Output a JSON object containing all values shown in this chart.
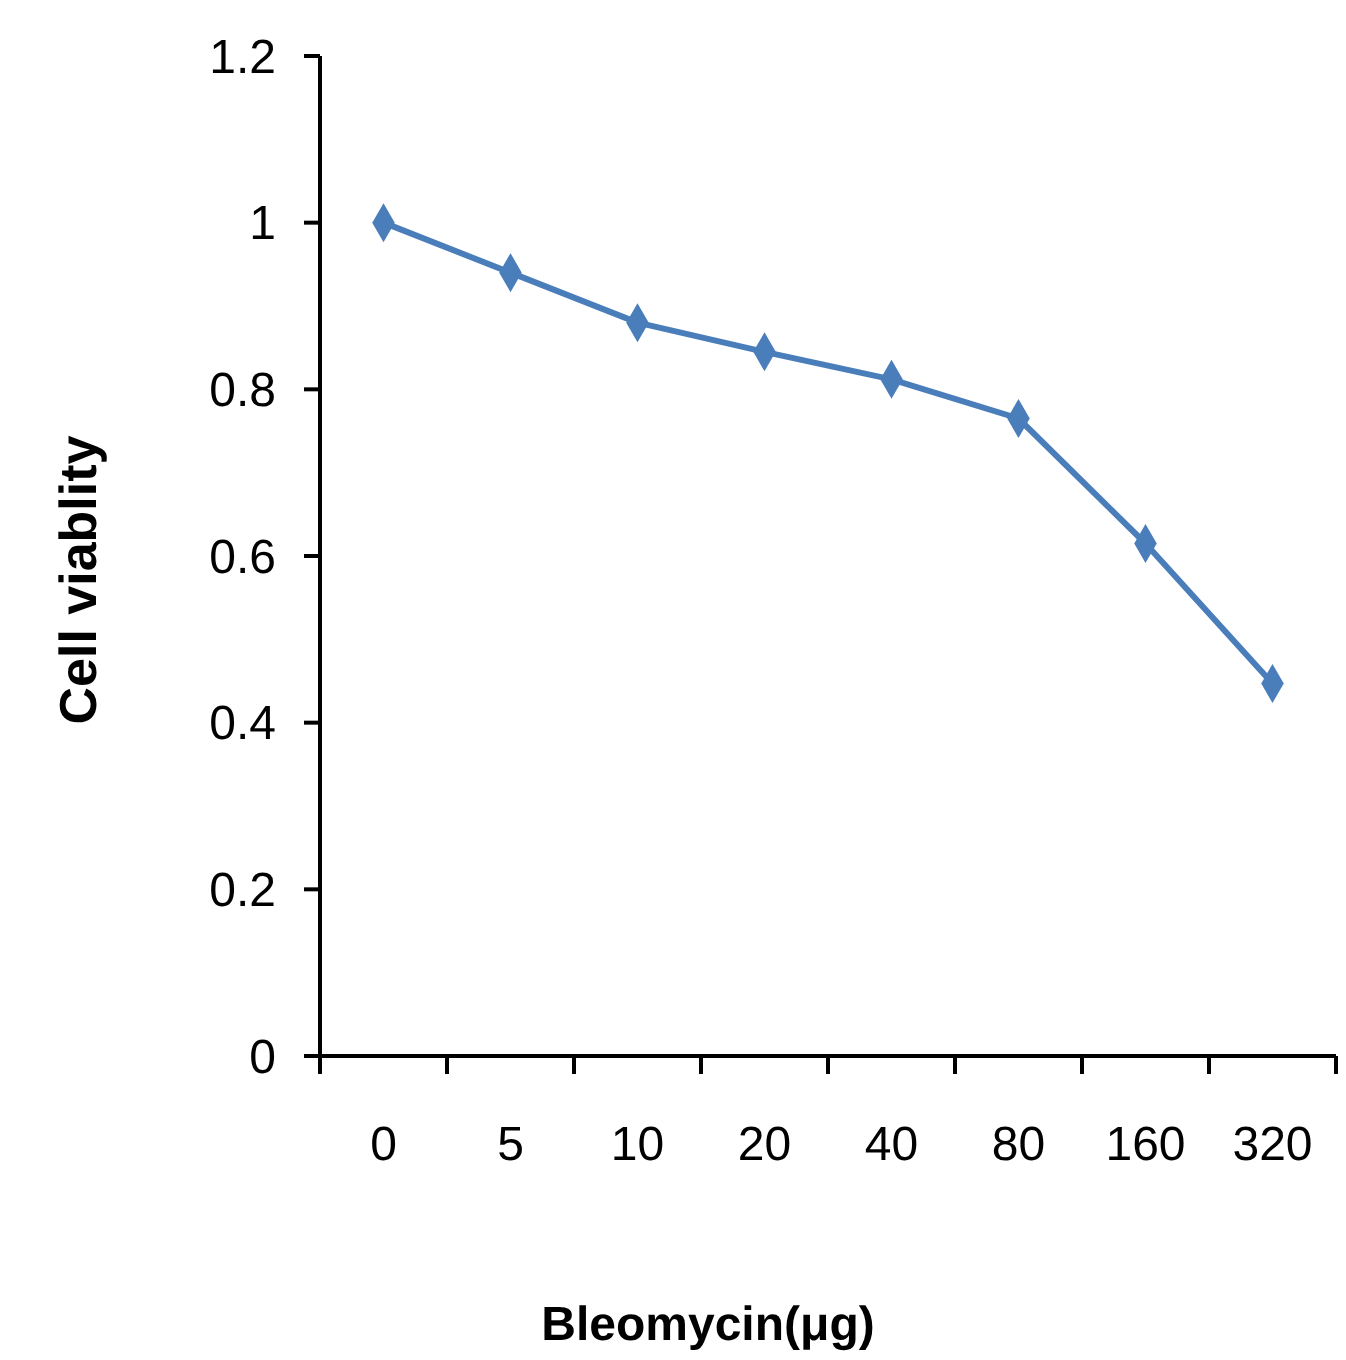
{
  "chart_data": {
    "type": "line",
    "xlabel": "Bleomycin(μg)",
    "ylabel": "Cell viablity",
    "categories": [
      "0",
      "5",
      "10",
      "20",
      "40",
      "80",
      "160",
      "320"
    ],
    "series": [
      {
        "color": "#4a7ebb",
        "values": [
          1.0,
          0.94,
          0.88,
          0.845,
          0.812,
          0.765,
          0.615,
          0.447
        ]
      }
    ],
    "ylim": [
      0,
      1.2
    ],
    "yticks": [
      0,
      {
        "value": 0.2,
        "label": "0.2"
      },
      {
        "value": 0.4,
        "label": "0.4"
      },
      {
        "value": 0.6,
        "label": "0.6"
      },
      {
        "value": 0.8,
        "label": "0.8"
      },
      1,
      {
        "value": 1.2,
        "label": "1.2"
      }
    ],
    "marker": "diamond"
  }
}
